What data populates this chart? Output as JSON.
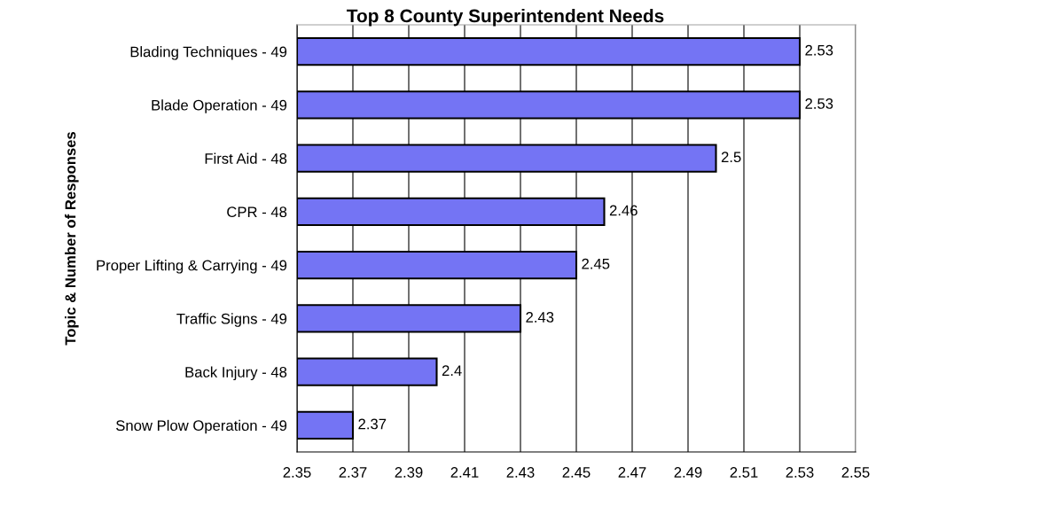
{
  "chart_data": {
    "type": "bar",
    "orientation": "horizontal",
    "title": "Top 8 County Superintendent Needs",
    "ylabel": "Topic & Number of Responses",
    "categories": [
      "Blading Techniques - 49",
      "Blade Operation - 49",
      "First Aid - 48",
      "CPR - 48",
      "Proper Lifting & Carrying - 49",
      "Traffic Signs - 49",
      "Back Injury - 48",
      "Snow Plow Operation - 49"
    ],
    "values": [
      2.53,
      2.53,
      2.5,
      2.46,
      2.45,
      2.43,
      2.4,
      2.37
    ],
    "color": "#7474f4",
    "xlim": [
      2.35,
      2.55
    ],
    "xticks": [
      2.35,
      2.37,
      2.39,
      2.41,
      2.43,
      2.45,
      2.47,
      2.49,
      2.51,
      2.53,
      2.55
    ],
    "grid": "x",
    "data_labels": true,
    "legend": false
  }
}
